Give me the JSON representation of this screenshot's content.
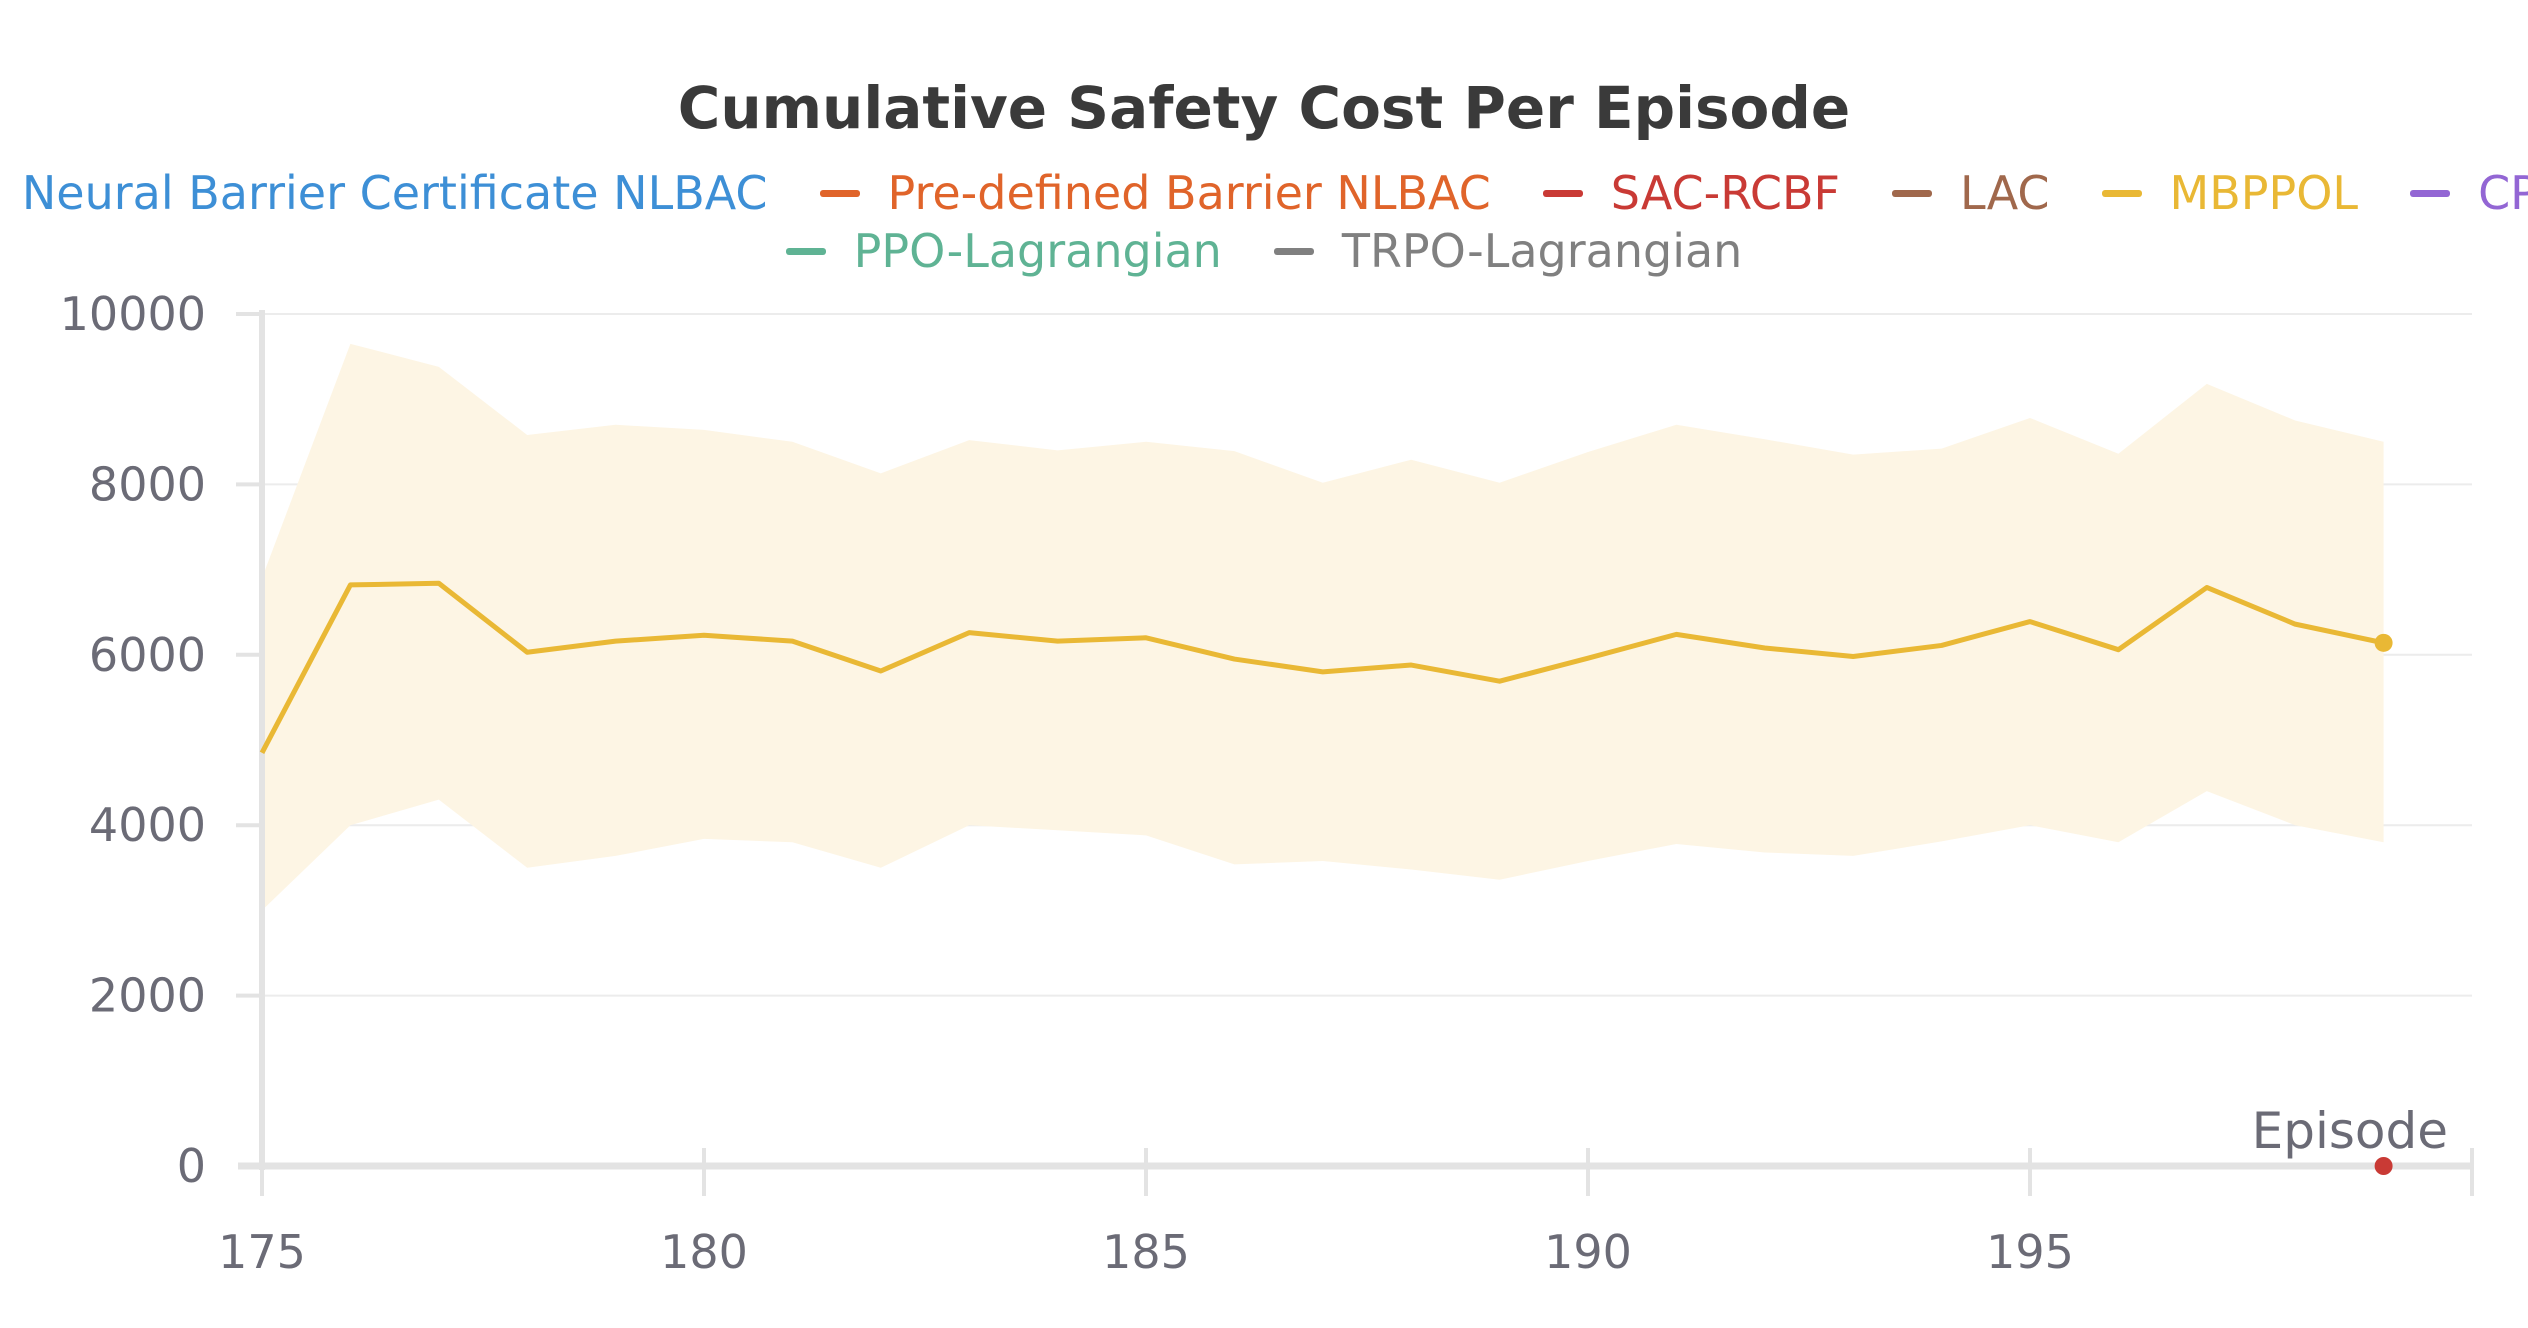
{
  "chart_data": {
    "type": "line",
    "title": "Cumulative Safety Cost Per Episode",
    "xlabel": "Episode",
    "ylabel": "",
    "xlim": [
      175,
      200
    ],
    "ylim": [
      0,
      10000
    ],
    "xticks": [
      175,
      180,
      185,
      190,
      195
    ],
    "yticks": [
      0,
      2000,
      4000,
      6000,
      8000,
      10000
    ],
    "grid": "horizontal",
    "legend": "top-center",
    "legend_entries": [
      {
        "name": "Neural Barrier Certificate NLBAC",
        "color": "#3d8fd6"
      },
      {
        "name": "Pre-defined Barrier NLBAC",
        "color": "#e0642a"
      },
      {
        "name": "SAC-RCBF",
        "color": "#c93a35"
      },
      {
        "name": "LAC",
        "color": "#a0684c"
      },
      {
        "name": "MBPPOL",
        "color": "#e9b835"
      },
      {
        "name": "CPO",
        "color": "#9366d4"
      },
      {
        "name": "PPO-Lagrangian",
        "color": "#5fb394"
      },
      {
        "name": "TRPO-Lagrangian",
        "color": "#808080"
      }
    ],
    "series": [
      {
        "name": "MBPPOL",
        "color": "#e9b835",
        "band_color": "#fdf5e4",
        "x": [
          175,
          176,
          177,
          178,
          179,
          180,
          181,
          182,
          183,
          184,
          185,
          186,
          187,
          188,
          189,
          190,
          191,
          192,
          193,
          194,
          195,
          196,
          197,
          198,
          199
        ],
        "values": [
          4850,
          6820,
          6840,
          6030,
          6160,
          6230,
          6160,
          5810,
          6260,
          6160,
          6200,
          5950,
          5800,
          5880,
          5690,
          5960,
          6240,
          6080,
          5980,
          6110,
          6390,
          6060,
          6790,
          6360,
          6140
        ],
        "upper": [
          6900,
          9650,
          9380,
          8580,
          8700,
          8640,
          8500,
          8130,
          8520,
          8400,
          8500,
          8390,
          8020,
          8290,
          8020,
          8380,
          8700,
          8530,
          8350,
          8420,
          8780,
          8360,
          9180,
          8750,
          8500
        ],
        "lower": [
          3000,
          4000,
          4300,
          3500,
          3640,
          3840,
          3800,
          3500,
          4000,
          3940,
          3880,
          3540,
          3580,
          3480,
          3360,
          3580,
          3780,
          3680,
          3640,
          3810,
          4000,
          3800,
          4400,
          4000,
          3800
        ]
      },
      {
        "name": "SAC-RCBF",
        "color": "#c93a35",
        "x": [
          199
        ],
        "values": [
          0
        ]
      }
    ]
  }
}
